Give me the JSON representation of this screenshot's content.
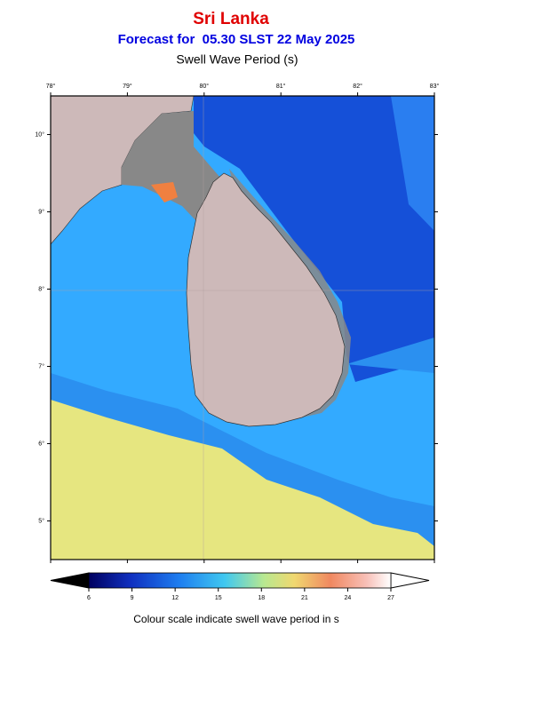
{
  "header": {
    "title": "Sri Lanka",
    "subtitle": "Forecast for  05.30 SLST 22 May 2025",
    "map_title": "Swell Wave Period (s)"
  },
  "map": {
    "lonlim": [
      78,
      83
    ],
    "latlim": [
      4.5,
      10.5
    ],
    "lon_ticks": [
      {
        "value": 78,
        "label": "78°"
      },
      {
        "value": 79,
        "label": "79°"
      },
      {
        "value": 80,
        "label": "80°"
      },
      {
        "value": 81,
        "label": "81°"
      },
      {
        "value": 82,
        "label": "82°"
      },
      {
        "value": 83,
        "label": "83°"
      }
    ],
    "lat_ticks": [
      {
        "value": 10,
        "label": "10°"
      },
      {
        "value": 9,
        "label": "9°"
      },
      {
        "value": 8,
        "label": "8°"
      },
      {
        "value": 7,
        "label": "7°"
      },
      {
        "value": 6,
        "label": "6°"
      },
      {
        "value": 5,
        "label": "5°"
      }
    ]
  },
  "colorbar": {
    "range": [
      6,
      27
    ],
    "ticks": [
      6,
      9,
      12,
      15,
      18,
      21,
      24,
      27
    ],
    "caption": "Colour scale indicate swell wave period in s"
  }
}
